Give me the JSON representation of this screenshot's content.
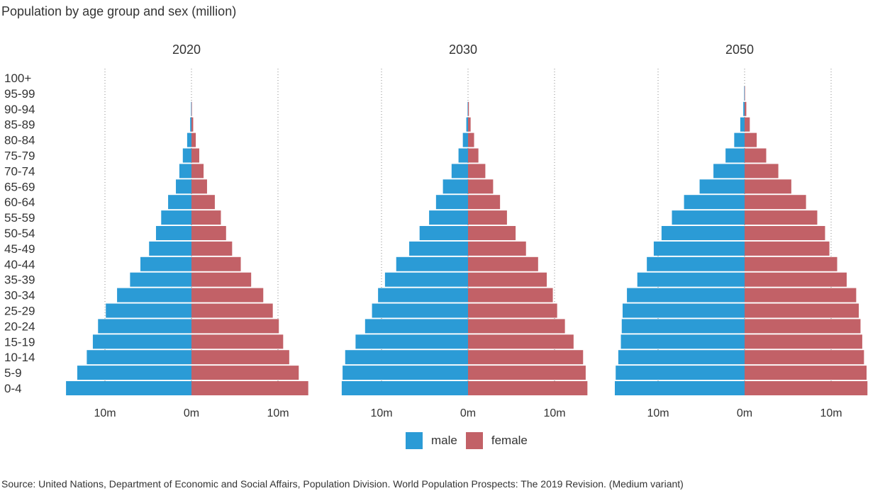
{
  "title": "Population by age group and sex (million)",
  "source": "Source: United Nations, Department of Economic and Social Affairs, Population Division. World Population Prospects: The 2019 Revision. (Medium variant)",
  "colors": {
    "male": "#2b9bd6",
    "female": "#c26167"
  },
  "legend": {
    "male": "male",
    "female": "female"
  },
  "chart_data": {
    "type": "bar",
    "orientation": "horizontal-population-pyramid",
    "categories": [
      "0-4",
      "5-9",
      "10-14",
      "15-19",
      "20-24",
      "25-29",
      "30-34",
      "35-39",
      "40-44",
      "45-49",
      "50-54",
      "55-59",
      "60-64",
      "65-69",
      "70-74",
      "75-79",
      "80-84",
      "85-89",
      "90-94",
      "95-99",
      "100+"
    ],
    "xlim": [
      -15,
      15
    ],
    "xticks": [
      -10,
      0,
      10
    ],
    "tick_labels": [
      "10m",
      "0m",
      "10m"
    ],
    "grid": "vertical dotted at ticks",
    "legend_position": "bottom-center",
    "panels": [
      {
        "title": "2020",
        "series": [
          {
            "name": "male",
            "values": [
              14.5,
              13.2,
              12.1,
              11.4,
              10.8,
              9.9,
              8.6,
              7.1,
              5.9,
              4.9,
              4.1,
              3.5,
              2.7,
              1.8,
              1.4,
              1.0,
              0.5,
              0.15,
              0.05,
              0,
              0
            ]
          },
          {
            "name": "female",
            "values": [
              13.5,
              12.4,
              11.3,
              10.6,
              10.1,
              9.4,
              8.3,
              6.9,
              5.7,
              4.7,
              4.0,
              3.4,
              2.7,
              1.8,
              1.4,
              0.9,
              0.5,
              0.2,
              0.05,
              0,
              0
            ]
          }
        ]
      },
      {
        "title": "2030",
        "series": [
          {
            "name": "male",
            "values": [
              14.6,
              14.5,
              14.2,
              13.0,
              11.9,
              11.1,
              10.4,
              9.6,
              8.3,
              6.8,
              5.6,
              4.5,
              3.7,
              2.9,
              1.9,
              1.1,
              0.6,
              0.2,
              0.05,
              0,
              0
            ]
          },
          {
            "name": "female",
            "values": [
              13.8,
              13.6,
              13.3,
              12.2,
              11.2,
              10.3,
              9.8,
              9.1,
              8.1,
              6.7,
              5.5,
              4.5,
              3.7,
              2.9,
              2.0,
              1.2,
              0.7,
              0.3,
              0.1,
              0,
              0
            ]
          }
        ]
      },
      {
        "title": "2050",
        "series": [
          {
            "name": "male",
            "values": [
              15.0,
              14.9,
              14.6,
              14.3,
              14.2,
              14.1,
              13.6,
              12.4,
              11.3,
              10.5,
              9.6,
              8.4,
              7.0,
              5.2,
              3.6,
              2.2,
              1.2,
              0.5,
              0.15,
              0.05,
              0
            ]
          },
          {
            "name": "female",
            "values": [
              14.2,
              14.1,
              13.8,
              13.6,
              13.4,
              13.2,
              12.9,
              11.8,
              10.7,
              9.8,
              9.3,
              8.4,
              7.1,
              5.4,
              3.9,
              2.5,
              1.4,
              0.6,
              0.2,
              0.05,
              0
            ]
          }
        ]
      }
    ]
  }
}
